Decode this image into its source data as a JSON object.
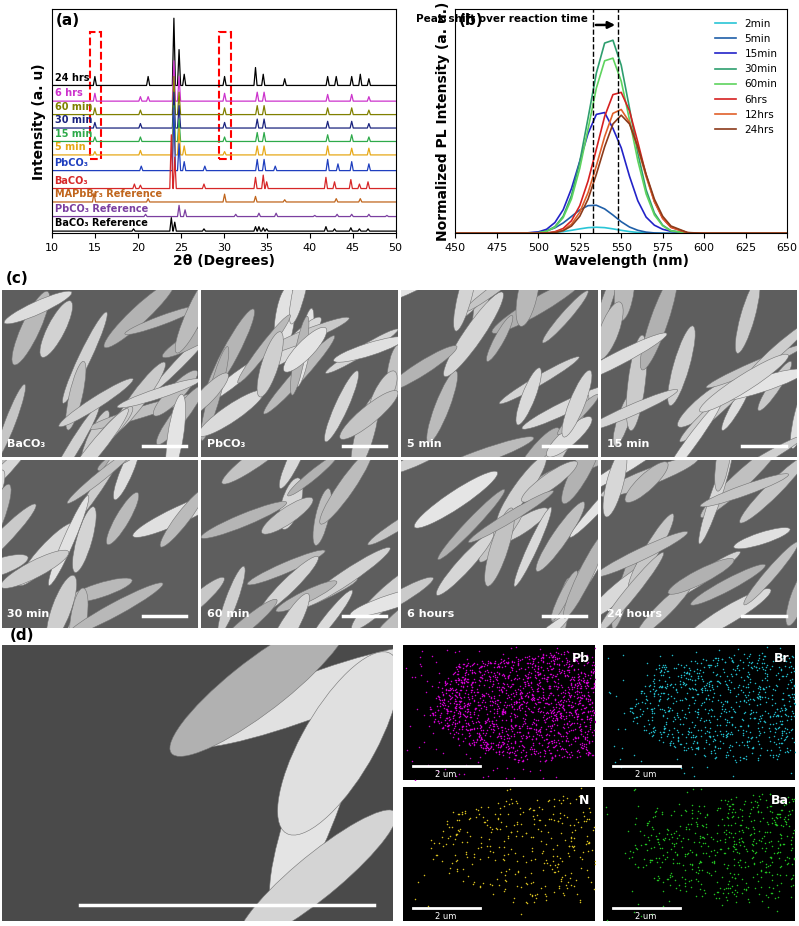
{
  "chart_data": [
    {
      "type": "line",
      "panel": "(a)",
      "x_label": "2θ (Degrees)",
      "y_label": "Intensity (a. u)",
      "xlim": [
        10,
        50
      ],
      "xticks": [
        10,
        15,
        20,
        25,
        30,
        35,
        40,
        45,
        50
      ],
      "ylim": [
        0,
        100
      ],
      "yticks": [],
      "tick_labels": "x",
      "grid": false,
      "highlights": [
        [
          14.4,
          15.7
        ],
        [
          29.5,
          30.9
        ]
      ],
      "series": [
        {
          "name": "24 hrs",
          "color": "#000000",
          "offset": 66,
          "peaks": [
            [
              15.0,
              4
            ],
            [
              21.2,
              4
            ],
            [
              24.2,
              30
            ],
            [
              24.8,
              16
            ],
            [
              25.4,
              5
            ],
            [
              30.1,
              4
            ],
            [
              33.7,
              8
            ],
            [
              34.6,
              5
            ],
            [
              37.1,
              3
            ],
            [
              42.1,
              4
            ],
            [
              43.1,
              4
            ],
            [
              44.9,
              4
            ],
            [
              45.9,
              5
            ],
            [
              46.9,
              3
            ]
          ]
        },
        {
          "name": "6 hrs",
          "color": "#cc33cc",
          "offset": 59,
          "peaks": [
            [
              15.0,
              3.5
            ],
            [
              20.3,
              2
            ],
            [
              21.2,
              2
            ],
            [
              24.2,
              18
            ],
            [
              24.8,
              11
            ],
            [
              30.1,
              3.5
            ],
            [
              33.9,
              4
            ],
            [
              34.7,
              4
            ],
            [
              42.1,
              3
            ],
            [
              44.9,
              3
            ],
            [
              46.9,
              2
            ]
          ]
        },
        {
          "name": "60 min",
          "color": "#808000",
          "offset": 53,
          "peaks": [
            [
              15.0,
              3
            ],
            [
              20.3,
              2
            ],
            [
              24.2,
              17
            ],
            [
              24.8,
              10
            ],
            [
              30.1,
              3
            ],
            [
              33.9,
              4
            ],
            [
              34.7,
              4
            ],
            [
              42.1,
              3
            ],
            [
              44.9,
              3
            ],
            [
              46.9,
              2
            ]
          ]
        },
        {
          "name": "30 min",
          "color": "#1a237e",
          "offset": 47,
          "peaks": [
            [
              15.0,
              2.5
            ],
            [
              20.3,
              2
            ],
            [
              24.2,
              16
            ],
            [
              24.8,
              10
            ],
            [
              30.1,
              2.5
            ],
            [
              33.9,
              4
            ],
            [
              34.7,
              4
            ],
            [
              42.1,
              3
            ],
            [
              44.9,
              3
            ],
            [
              46.9,
              2
            ]
          ]
        },
        {
          "name": "15 min",
          "color": "#2eaa4a",
          "offset": 41,
          "peaks": [
            [
              15.0,
              2
            ],
            [
              20.3,
              2
            ],
            [
              24.2,
              16
            ],
            [
              24.8,
              10
            ],
            [
              30.1,
              2
            ],
            [
              33.9,
              4
            ],
            [
              34.7,
              4
            ],
            [
              42.1,
              3
            ],
            [
              44.9,
              3
            ],
            [
              46.9,
              2
            ]
          ]
        },
        {
          "name": "5 min",
          "color": "#e6a817",
          "offset": 35,
          "peaks": [
            [
              15.0,
              1.5
            ],
            [
              20.3,
              2
            ],
            [
              24.2,
              20
            ],
            [
              24.8,
              12
            ],
            [
              25.4,
              4
            ],
            [
              30.1,
              1.5
            ],
            [
              33.9,
              4
            ],
            [
              34.7,
              4
            ],
            [
              42.1,
              4
            ],
            [
              44.9,
              3
            ],
            [
              46.9,
              3
            ]
          ]
        },
        {
          "name": "PbCO₃",
          "color": "#1f3fbf",
          "offset": 28,
          "peaks": [
            [
              20.4,
              2
            ],
            [
              24.2,
              28
            ],
            [
              24.8,
              12
            ],
            [
              25.4,
              4
            ],
            [
              27.8,
              2
            ],
            [
              33.9,
              5
            ],
            [
              34.7,
              5
            ],
            [
              36.0,
              2
            ],
            [
              42.1,
              5
            ],
            [
              43.3,
              3
            ],
            [
              44.9,
              4
            ],
            [
              46.9,
              3
            ]
          ]
        },
        {
          "name": "BaCO₃",
          "color": "#d62728",
          "offset": 20,
          "peaks": [
            [
              19.6,
              2
            ],
            [
              20.3,
              1.5
            ],
            [
              23.9,
              24
            ],
            [
              24.3,
              14
            ],
            [
              27.7,
              2
            ],
            [
              33.7,
              5
            ],
            [
              34.6,
              6
            ],
            [
              35.0,
              3
            ],
            [
              41.9,
              5
            ],
            [
              42.9,
              3
            ],
            [
              44.8,
              4
            ],
            [
              45.8,
              2
            ],
            [
              46.8,
              3
            ]
          ]
        },
        {
          "name": "MAPbBr₃ Reference",
          "color": "#c0651c",
          "offset": 14,
          "peaks": [
            [
              14.9,
              4
            ],
            [
              21.2,
              1.5
            ],
            [
              30.1,
              3.5
            ],
            [
              33.7,
              2.5
            ],
            [
              37.1,
              1
            ],
            [
              43.1,
              1.5
            ],
            [
              45.9,
              1.5
            ]
          ]
        },
        {
          "name": "PbCO₃ Reference",
          "color": "#7b3fa0",
          "offset": 7.5,
          "peaks": [
            [
              20.9,
              1
            ],
            [
              24.8,
              5
            ],
            [
              25.5,
              3
            ],
            [
              31.4,
              1
            ],
            [
              34.1,
              1.5
            ],
            [
              36.1,
              1.5
            ],
            [
              40.6,
              0.5
            ],
            [
              43.2,
              1
            ],
            [
              44.9,
              1
            ],
            [
              46.9,
              1
            ],
            [
              49.0,
              0.5
            ]
          ]
        },
        {
          "name": "BaCO₃ Reference",
          "color": "#000000",
          "offset": 1,
          "peaks": [
            [
              19.5,
              1
            ],
            [
              23.9,
              6
            ],
            [
              24.3,
              4
            ],
            [
              27.7,
              1
            ],
            [
              33.7,
              2
            ],
            [
              34.1,
              2
            ],
            [
              34.6,
              1.5
            ],
            [
              35.0,
              1
            ],
            [
              41.9,
              2
            ],
            [
              42.9,
              1
            ],
            [
              44.8,
              1.5
            ],
            [
              45.8,
              1
            ],
            [
              46.8,
              1
            ]
          ]
        }
      ]
    },
    {
      "type": "line",
      "panel": "(b)",
      "x_label": "Wavelength (nm)",
      "y_label": "Normalized PL Intensity (a. u.)",
      "xlim": [
        450,
        650
      ],
      "xticks": [
        450,
        475,
        500,
        525,
        550,
        575,
        600,
        625,
        650
      ],
      "ylim": [
        0,
        110
      ],
      "yticks": [],
      "tick_labels": "x",
      "grid": false,
      "legend": "upper right",
      "annotation": {
        "text": "Peak shift over reaction time",
        "lines": [
          533,
          548
        ]
      },
      "x": [
        450,
        490,
        500,
        505,
        510,
        515,
        520,
        525,
        530,
        535,
        540,
        545,
        550,
        555,
        560,
        565,
        570,
        575,
        580,
        590,
        600,
        650
      ],
      "series": [
        {
          "name": "2min",
          "color": "#29c5d6",
          "values": [
            0,
            0,
            0.07,
            0.2,
            0.44,
            0.87,
            1.5,
            2.2,
            2.8,
            3,
            2.8,
            2.2,
            1.5,
            0.87,
            0.44,
            0.2,
            0.07,
            0.02,
            0,
            0,
            0,
            0
          ]
        },
        {
          "name": "5min",
          "color": "#1f5fa8",
          "values": [
            0,
            0.03,
            0.48,
            1.2,
            2.7,
            5.1,
            8.3,
            11.5,
            13.6,
            13.8,
            12,
            9,
            5.7,
            3.1,
            1.5,
            0.6,
            0.2,
            0.06,
            0,
            0,
            0,
            0
          ]
        },
        {
          "name": "15min",
          "color": "#2323c8",
          "values": [
            0,
            0,
            0.7,
            2,
            5.3,
            11.6,
            22,
            35.4,
            49,
            58.4,
            59.3,
            51.5,
            42,
            28,
            16,
            8,
            4,
            2,
            1,
            0.2,
            0,
            0
          ]
        },
        {
          "name": "30min",
          "color": "#2e9e6e",
          "values": [
            0,
            0,
            0.3,
            1.1,
            3.3,
            8.4,
            18.6,
            35.2,
            56.6,
            78.7,
            93.4,
            94.8,
            82.5,
            61.4,
            39.4,
            21.4,
            10,
            4,
            1.3,
            0.1,
            0,
            0
          ]
        },
        {
          "name": "60min",
          "color": "#5ed35e",
          "values": [
            0,
            0,
            0.3,
            1,
            3,
            7.7,
            16.9,
            31.9,
            51.3,
            71.3,
            84.7,
            86,
            74.7,
            55.7,
            35.7,
            19.4,
            9,
            3.7,
            1.2,
            0.1,
            0,
            0
          ]
        },
        {
          "name": "6hrs",
          "color": "#d62020",
          "values": [
            0,
            0,
            0,
            0.2,
            0.8,
            2.4,
            6.2,
            13.6,
            25.7,
            41.3,
            57.4,
            68.1,
            69.2,
            60.1,
            44.8,
            28.7,
            15.6,
            7.3,
            2.9,
            0.3,
            0,
            0
          ]
        },
        {
          "name": "12hrs",
          "color": "#e0602a",
          "values": [
            0,
            0,
            0,
            0.1,
            0.5,
            1.6,
            4.5,
            10.4,
            20,
            33.2,
            47.5,
            58.9,
            60.8,
            54.5,
            42,
            27.9,
            15.6,
            7.6,
            3.1,
            0.3,
            0,
            0
          ]
        },
        {
          "name": "24hrs",
          "color": "#8b3a1a",
          "values": [
            0,
            0,
            0,
            0.1,
            0.4,
            1.3,
            3.6,
            8.4,
            16.8,
            29,
            42.5,
            53.7,
            58,
            53.7,
            42.5,
            29,
            16.8,
            8.4,
            3.6,
            0.4,
            0,
            0
          ]
        }
      ]
    }
  ],
  "sem_images": {
    "panel": "(c)",
    "labels": [
      "BaCO₃",
      "PbCO₃",
      "5 min",
      "15 min",
      "30 min",
      "60 min",
      "6 hours",
      "24 hours"
    ]
  },
  "eds_maps": {
    "panel": "(d)",
    "scale_label": "2 um",
    "elements": [
      {
        "name": "Pb",
        "color": "#cc00cc"
      },
      {
        "name": "Br",
        "color": "#22b8c8"
      },
      {
        "name": "N",
        "color": "#d8c020"
      },
      {
        "name": "Ba",
        "color": "#22c022"
      }
    ]
  }
}
